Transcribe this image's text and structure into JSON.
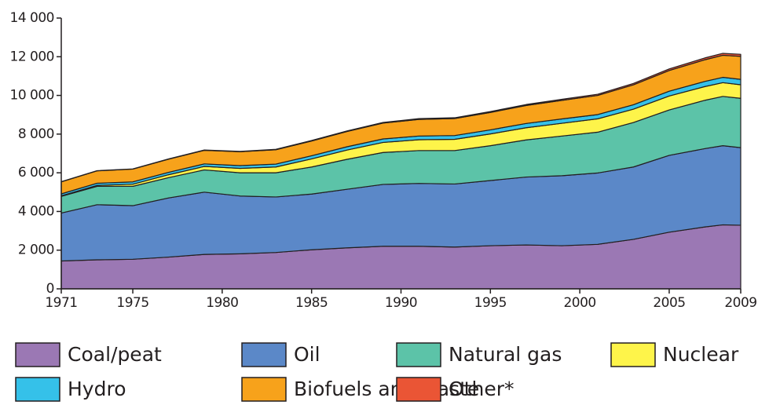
{
  "chart_data": {
    "type": "stacked-area",
    "x": [
      1971,
      1973,
      1975,
      1977,
      1979,
      1981,
      1983,
      1985,
      1987,
      1989,
      1991,
      1993,
      1995,
      1997,
      1999,
      2001,
      2003,
      2005,
      2007,
      2008,
      2009
    ],
    "series": [
      {
        "name": "Coal/peat",
        "color": "#9b78b4",
        "values": [
          1440,
          1500,
          1530,
          1640,
          1780,
          1810,
          1880,
          2020,
          2120,
          2200,
          2200,
          2160,
          2230,
          2270,
          2230,
          2300,
          2560,
          2930,
          3200,
          3310,
          3290
        ]
      },
      {
        "name": "Oil",
        "color": "#5b88c8",
        "values": [
          2480,
          2850,
          2770,
          3060,
          3220,
          2990,
          2870,
          2880,
          3030,
          3200,
          3250,
          3260,
          3370,
          3510,
          3620,
          3690,
          3740,
          3970,
          4050,
          4090,
          4010
        ]
      },
      {
        "name": "Natural gas",
        "color": "#5cc3a8",
        "values": [
          860,
          950,
          1000,
          1050,
          1150,
          1200,
          1250,
          1400,
          1550,
          1650,
          1700,
          1730,
          1800,
          1920,
          2050,
          2110,
          2300,
          2350,
          2500,
          2550,
          2550
        ]
      },
      {
        "name": "Nuclear",
        "color": "#fef44a",
        "values": [
          30,
          50,
          110,
          150,
          180,
          230,
          300,
          420,
          480,
          520,
          560,
          580,
          610,
          630,
          660,
          690,
          690,
          720,
          710,
          710,
          700
        ]
      },
      {
        "name": "Hydro",
        "color": "#35c1e9",
        "values": [
          100,
          110,
          120,
          125,
          130,
          140,
          150,
          160,
          170,
          180,
          190,
          195,
          210,
          220,
          225,
          220,
          230,
          250,
          265,
          275,
          280
        ]
      },
      {
        "name": "Biofuels and waste",
        "color": "#f7a21b",
        "values": [
          620,
          640,
          660,
          680,
          700,
          720,
          740,
          760,
          790,
          820,
          860,
          880,
          900,
          930,
          960,
          990,
          1030,
          1070,
          1120,
          1140,
          1190
        ]
      },
      {
        "name": "Other*",
        "color": "#ea5535",
        "values": [
          10,
          10,
          10,
          15,
          20,
          20,
          25,
          30,
          30,
          35,
          40,
          40,
          45,
          50,
          55,
          60,
          70,
          80,
          95,
          100,
          105
        ]
      }
    ],
    "xlim": [
      1971,
      2009
    ],
    "xticks": [
      1971,
      1975,
      1980,
      1985,
      1990,
      1995,
      2000,
      2005,
      2009
    ],
    "ylim": [
      0,
      14000
    ],
    "yticks": [
      0,
      {
        "value": 2000,
        "label": "2 000"
      },
      {
        "value": 4000,
        "label": "4 000"
      },
      {
        "value": 6000,
        "label": "6 000"
      },
      {
        "value": 8000,
        "label": "8 000"
      },
      {
        "value": 10000,
        "label": "10 000"
      },
      {
        "value": 12000,
        "label": "12 000"
      },
      {
        "value": 14000,
        "label": "14 000"
      }
    ]
  }
}
